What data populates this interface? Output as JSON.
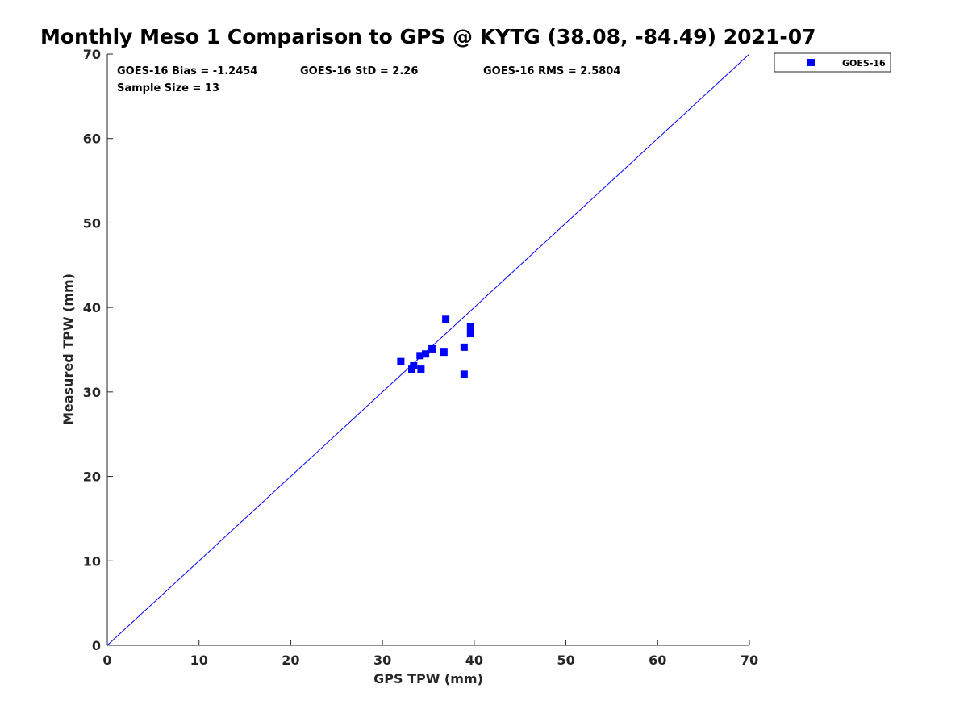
{
  "chart_data": {
    "type": "scatter",
    "title": "Monthly Meso 1 Comparison to GPS @ KYTG (38.08, -84.49) 2021-07",
    "xlabel": "GPS TPW (mm)",
    "ylabel": "Measured TPW (mm)",
    "xlim": [
      0,
      70
    ],
    "ylim": [
      0,
      70
    ],
    "xticks": [
      "0",
      "10",
      "20",
      "30",
      "40",
      "50",
      "60",
      "70"
    ],
    "yticks": [
      "0",
      "10",
      "20",
      "30",
      "40",
      "50",
      "60",
      "70"
    ],
    "grid": false,
    "legend_position": "outside-top-right",
    "reference_line": {
      "from": [
        0,
        0
      ],
      "to": [
        70,
        70
      ],
      "color": "#0000ff"
    },
    "stats": {
      "bias": "GOES-16 Bias = -1.2454",
      "std": "GOES-16 StD = 2.26",
      "rms": "GOES-16 RMS = 2.5804",
      "sample_size": "Sample Size = 13"
    },
    "series": [
      {
        "name": "GOES-16",
        "color": "#0000ff",
        "marker": "square",
        "points": [
          {
            "x": 32.0,
            "y": 33.6
          },
          {
            "x": 33.2,
            "y": 32.7
          },
          {
            "x": 33.4,
            "y": 33.1
          },
          {
            "x": 34.1,
            "y": 34.3
          },
          {
            "x": 34.2,
            "y": 32.7
          },
          {
            "x": 34.7,
            "y": 34.5
          },
          {
            "x": 35.4,
            "y": 35.1
          },
          {
            "x": 36.7,
            "y": 34.7
          },
          {
            "x": 36.9,
            "y": 38.6
          },
          {
            "x": 38.9,
            "y": 35.3
          },
          {
            "x": 38.9,
            "y": 32.1
          },
          {
            "x": 39.6,
            "y": 37.7
          },
          {
            "x": 39.6,
            "y": 36.9
          }
        ]
      }
    ]
  }
}
